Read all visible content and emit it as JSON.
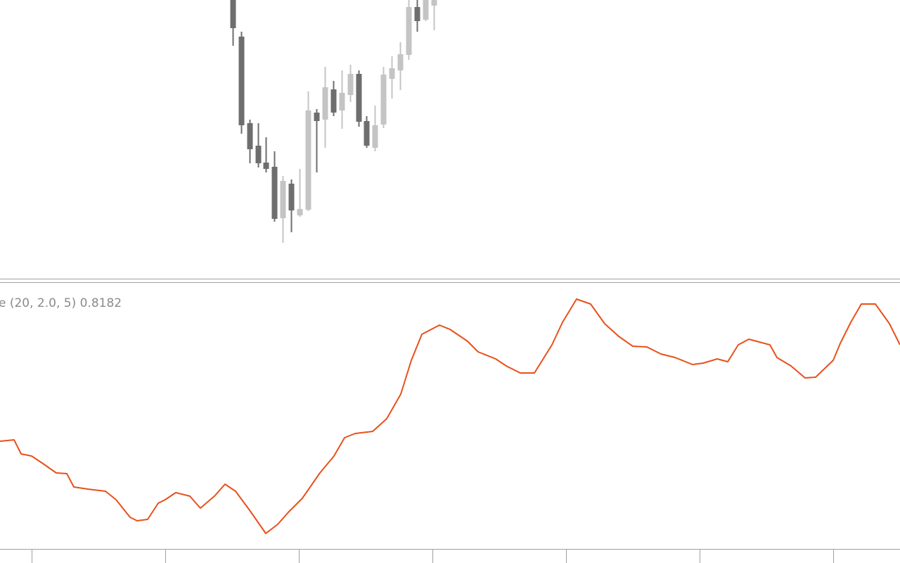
{
  "indicator": {
    "label": "e (20, 2.0, 5) 0.8182"
  }
}
